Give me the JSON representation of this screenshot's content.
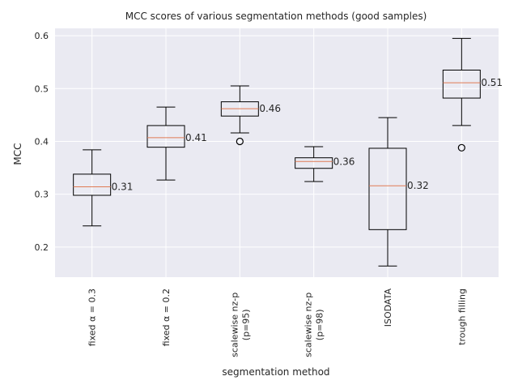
{
  "chart_data": {
    "type": "box",
    "title": "MCC scores of various segmentation methods (good samples)",
    "xlabel": "segmentation method",
    "ylabel": "MCC",
    "ylim": [
      0.143,
      0.614
    ],
    "yticks": [
      0.2,
      0.3,
      0.4,
      0.5,
      0.6
    ],
    "ytick_labels": [
      "0.2",
      "0.3",
      "0.4",
      "0.5",
      "0.6"
    ],
    "grid": true,
    "background": "#eaeaf2",
    "box_color": "#000000",
    "median_color": "#e07b54",
    "categories": [
      [
        "fixed α = 0.3"
      ],
      [
        "fixed α = 0.2"
      ],
      [
        "scalewise nz-p",
        "(p=95)"
      ],
      [
        "scalewise nz-p",
        "(p=98)"
      ],
      [
        "ISODATA"
      ],
      [
        "trough filling"
      ]
    ],
    "boxes": [
      {
        "whisker_low": 0.24,
        "q1": 0.298,
        "median": 0.314,
        "q3": 0.338,
        "whisker_high": 0.384,
        "outliers": [],
        "median_label": "0.31"
      },
      {
        "whisker_low": 0.327,
        "q1": 0.389,
        "median": 0.407,
        "q3": 0.43,
        "whisker_high": 0.465,
        "outliers": [],
        "median_label": "0.41"
      },
      {
        "whisker_low": 0.416,
        "q1": 0.448,
        "median": 0.462,
        "q3": 0.475,
        "whisker_high": 0.505,
        "outliers": [
          0.4
        ],
        "median_label": "0.46"
      },
      {
        "whisker_low": 0.324,
        "q1": 0.349,
        "median": 0.362,
        "q3": 0.369,
        "whisker_high": 0.39,
        "outliers": [],
        "median_label": "0.36"
      },
      {
        "whisker_low": 0.164,
        "q1": 0.233,
        "median": 0.316,
        "q3": 0.387,
        "whisker_high": 0.445,
        "outliers": [],
        "median_label": "0.32"
      },
      {
        "whisker_low": 0.43,
        "q1": 0.482,
        "median": 0.511,
        "q3": 0.535,
        "whisker_high": 0.595,
        "outliers": [
          0.388
        ],
        "median_label": "0.51"
      }
    ]
  }
}
